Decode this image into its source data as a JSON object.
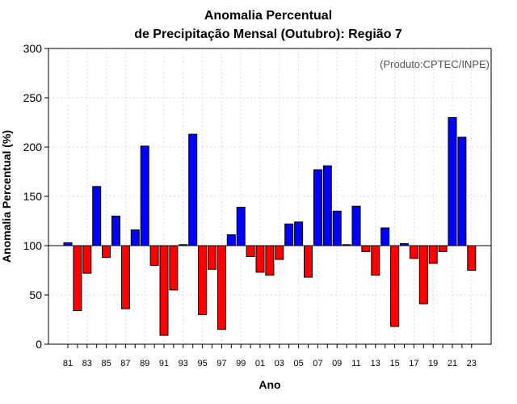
{
  "chart_data": {
    "type": "bar",
    "title_line1": "Anomalia Percentual",
    "title_line2": "de Precipitação Mensal (Outubro): Região 7",
    "xlabel": "Ano",
    "ylabel": "Anomalia Percentual (%)",
    "watermark": "(Produto:CPTEC/INPE)",
    "ylim": [
      0,
      300
    ],
    "yticks": [
      "0",
      "50",
      "100",
      "150",
      "200",
      "250",
      "300"
    ],
    "baseline": 100,
    "colors": {
      "above": "#0000ff",
      "below": "#ff0000"
    },
    "years": [
      "81",
      "82",
      "83",
      "84",
      "85",
      "86",
      "87",
      "88",
      "89",
      "90",
      "91",
      "92",
      "93",
      "94",
      "95",
      "96",
      "97",
      "98",
      "99",
      "00",
      "01",
      "02",
      "03",
      "04",
      "05",
      "06",
      "07",
      "08",
      "09",
      "10",
      "11",
      "12",
      "13",
      "14",
      "15",
      "16",
      "17",
      "18",
      "19",
      "20",
      "21",
      "22",
      "23"
    ],
    "values": [
      103,
      34,
      72,
      160,
      88,
      130,
      36,
      116,
      201,
      80,
      9,
      55,
      101,
      213,
      30,
      76,
      15,
      111,
      139,
      89,
      73,
      70,
      86,
      122,
      124,
      68,
      177,
      181,
      135,
      101,
      140,
      94,
      70,
      118,
      18,
      102,
      87,
      41,
      82,
      94,
      230,
      210,
      75
    ],
    "tick_labels": [
      "81",
      "83",
      "85",
      "87",
      "89",
      "91",
      "93",
      "95",
      "97",
      "99",
      "01",
      "03",
      "05",
      "07",
      "09",
      "11",
      "13",
      "15",
      "17",
      "19",
      "21",
      "23"
    ]
  }
}
